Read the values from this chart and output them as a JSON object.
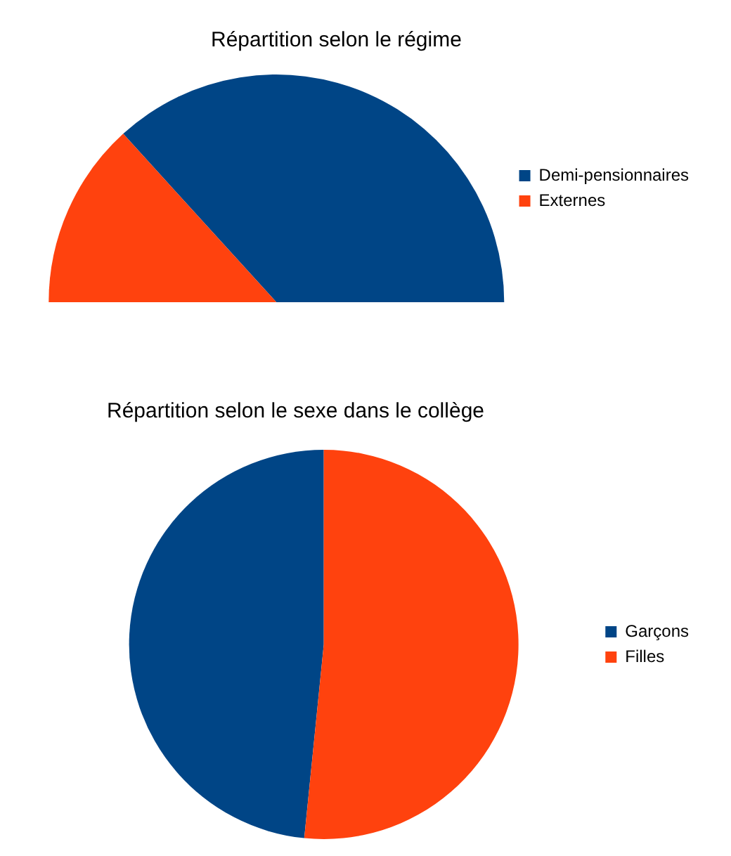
{
  "chart_data": [
    {
      "type": "pie",
      "title": "Répartition selon le régime",
      "categories": [
        "Demi-pensionnaires",
        "Externes"
      ],
      "values": [
        73.5,
        26.5
      ],
      "colors": [
        "#004586",
        "#ff420e"
      ],
      "legend": "right"
    },
    {
      "type": "pie",
      "title": "Répartition selon le sexe dans le collège",
      "categories": [
        "Garçons",
        "Filles"
      ],
      "values": [
        48.4,
        51.6
      ],
      "colors": [
        "#004586",
        "#ff420e"
      ],
      "legend": "right"
    }
  ]
}
